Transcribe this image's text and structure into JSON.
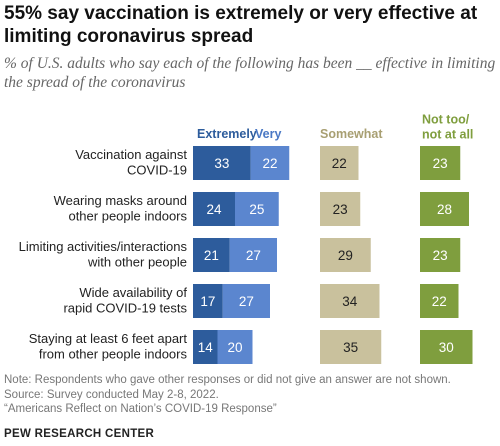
{
  "title": "55% say vaccination is extremely or very effective at limiting coronavirus spread",
  "subtitle": "% of U.S. adults who say each of the following has been __ effective in limiting the spread of the coronavirus",
  "chart_data": {
    "type": "bar",
    "categories": [
      "Vaccination against\nCOVID-19",
      "Wearing masks around\nother people indoors",
      "Limiting activities/interactions\nwith other people",
      "Wide availability of\nrapid COVID-19 tests",
      "Staying at least 6 feet apart\nfrom other people indoors"
    ],
    "series": [
      {
        "name": "Extremely",
        "values": [
          33,
          24,
          21,
          17,
          14
        ]
      },
      {
        "name": "Very",
        "values": [
          22,
          25,
          27,
          27,
          20
        ]
      },
      {
        "name": "Somewhat",
        "values": [
          22,
          23,
          29,
          34,
          35
        ]
      },
      {
        "name": "Not too/\nnot at all",
        "values": [
          23,
          28,
          23,
          22,
          30
        ]
      }
    ],
    "colors": {
      "Extremely": "#2d5c9c",
      "Very": "#5b86cf",
      "Somewhat": "#c9c19d",
      "Not too/\nnot at all": "#7f9e3e"
    },
    "header_colors": {
      "Extremely": "#2d5c9c",
      "Very": "#4a78c4",
      "Somewhat": "#a89f72",
      "Not too/\nnot at all": "#7f9e3e"
    }
  },
  "notes": {
    "note": "Note: Respondents who gave other responses or did not give an answer are not shown.",
    "source": "Source: Survey conducted May 2-8, 2022.",
    "report": "“Americans Reflect on Nation’s COVID-19 Response”"
  },
  "org": "PEW RESEARCH CENTER"
}
